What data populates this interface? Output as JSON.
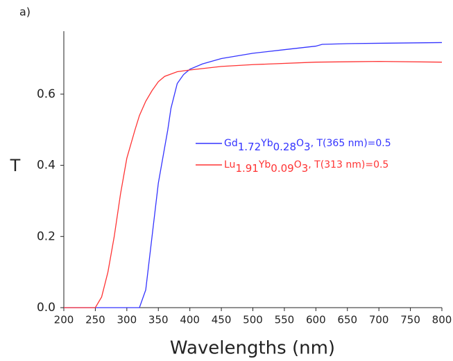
{
  "chart_data": {
    "type": "line",
    "panel_label": "a)",
    "xlabel": "Wavelengths (nm)",
    "ylabel": "T",
    "xlim": [
      200,
      800
    ],
    "ylim": [
      0,
      0.777
    ],
    "xticks": [
      200,
      250,
      300,
      350,
      400,
      450,
      500,
      550,
      600,
      650,
      700,
      750,
      800
    ],
    "yticks": [
      {
        "value": 0,
        "label": "0.0"
      },
      0.2,
      0.4,
      0.6
    ],
    "legend": "center-right",
    "series": [
      {
        "name": "Gd1.72Yb0.28O3, T(365 nm)=0.5",
        "color": "#3333ff",
        "x": [
          200,
          320,
          330,
          340,
          350,
          360,
          365,
          370,
          380,
          390,
          400,
          420,
          450,
          500,
          550,
          600,
          610,
          650,
          700,
          800
        ],
        "values": [
          0,
          0,
          0.05,
          0.2,
          0.35,
          0.45,
          0.5,
          0.56,
          0.63,
          0.655,
          0.67,
          0.685,
          0.7,
          0.715,
          0.725,
          0.735,
          0.74,
          0.742,
          0.743,
          0.745
        ]
      },
      {
        "name": "Lu1.91Yb0.09O3, T(313 nm)=0.5",
        "color": "#ff3333",
        "x": [
          200,
          250,
          260,
          270,
          280,
          290,
          300,
          313,
          320,
          330,
          340,
          350,
          360,
          380,
          400,
          450,
          500,
          600,
          700,
          800
        ],
        "values": [
          0,
          0,
          0.03,
          0.1,
          0.2,
          0.32,
          0.42,
          0.5,
          0.54,
          0.58,
          0.61,
          0.635,
          0.65,
          0.663,
          0.668,
          0.678,
          0.683,
          0.69,
          0.692,
          0.69
        ]
      }
    ]
  }
}
